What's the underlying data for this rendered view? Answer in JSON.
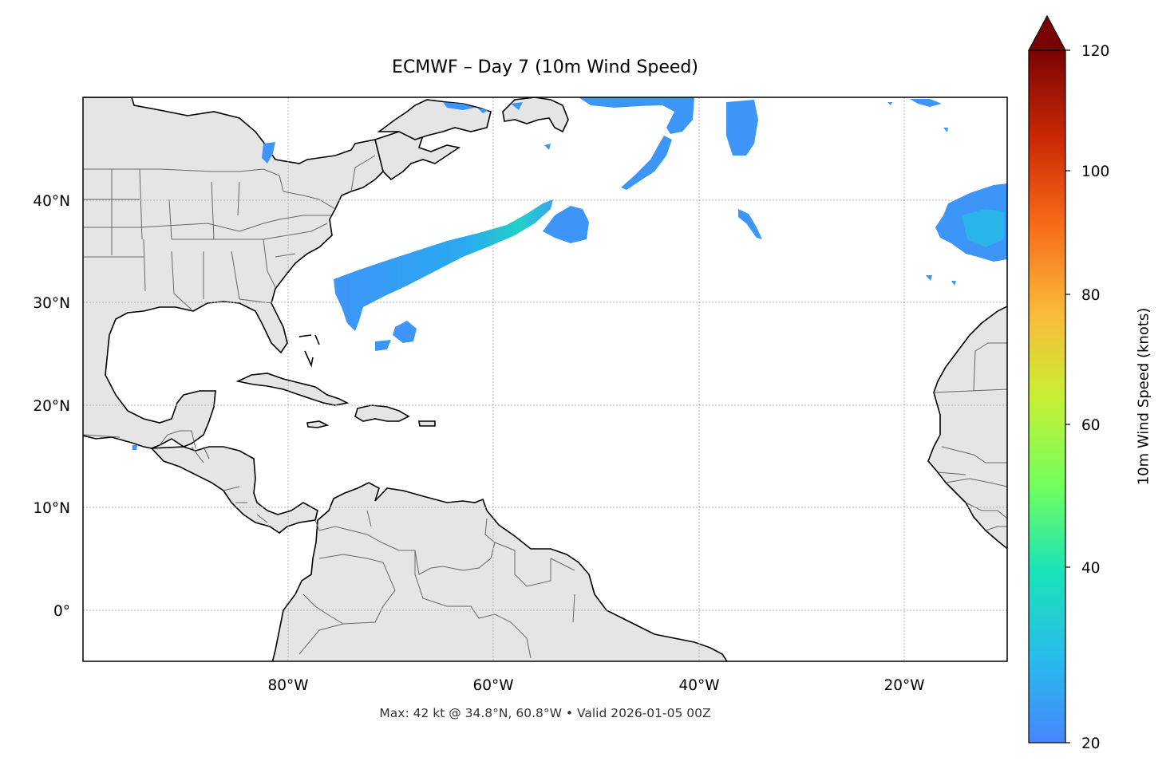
{
  "title": "ECMWF – Day 7 (10m Wind Speed)",
  "footer": "Max: 42 kt @ 34.8°N, 60.8°W • Valid 2026-01-05 00Z",
  "map": {
    "extent": {
      "lon": [
        -100,
        -10
      ],
      "lat": [
        -5,
        50
      ]
    },
    "lat_ticks": [
      {
        "value": 40,
        "label": "40°N"
      },
      {
        "value": 30,
        "label": "30°N"
      },
      {
        "value": 20,
        "label": "20°N"
      },
      {
        "value": 10,
        "label": "10°N"
      },
      {
        "value": 0,
        "label": "0°"
      }
    ],
    "lon_ticks": [
      {
        "value": -80,
        "label": "80°W"
      },
      {
        "value": -60,
        "label": "60°W"
      },
      {
        "value": -40,
        "label": "40°W"
      },
      {
        "value": -20,
        "label": "20°W"
      }
    ],
    "gridlines": true,
    "land_color": "#e5e5e5",
    "coast_color": "#000000",
    "border_color": "#666666"
  },
  "colorbar": {
    "label": "10m Wind Speed (knots)",
    "min": 20,
    "max": 120,
    "ticks": [
      {
        "value": 20,
        "label": "20"
      },
      {
        "value": 40,
        "label": "40"
      },
      {
        "value": 60,
        "label": "60"
      },
      {
        "value": 80,
        "label": "80"
      },
      {
        "value": 100,
        "label": "100"
      },
      {
        "value": 120,
        "label": "120"
      }
    ],
    "extend": "max",
    "colors": [
      "#4686fb",
      "#28bbec",
      "#1ae4b6",
      "#72fe5e",
      "#c8ef34",
      "#faba39",
      "#f66b19",
      "#cb2a04",
      "#7a0403"
    ]
  },
  "wind_features": [
    {
      "name": "main-jet-band",
      "speed_range_kt": [
        22,
        42
      ]
    },
    {
      "name": "ne-canada-band",
      "speed_range_kt": [
        20,
        28
      ]
    },
    {
      "name": "east-atlantic-band",
      "speed_range_kt": [
        20,
        30
      ]
    }
  ]
}
